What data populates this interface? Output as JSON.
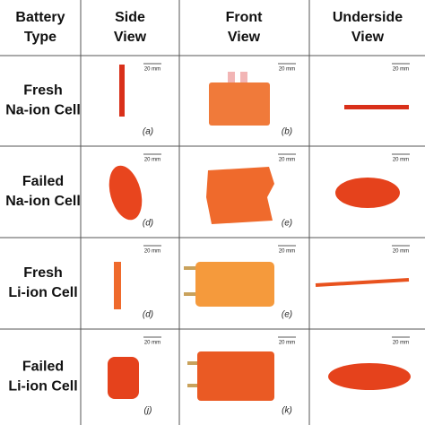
{
  "header": [
    [
      "Battery",
      "Type"
    ],
    [
      "Side",
      "View"
    ],
    [
      "Front",
      "View"
    ],
    [
      "Underside",
      "View"
    ]
  ],
  "rows": [
    {
      "type": [
        "Fresh",
        "Na-ion Cell"
      ],
      "cells": [
        {
          "scale": "20 mm",
          "label": "(a)"
        },
        {
          "scale": "20 mm",
          "label": "(b)"
        },
        {
          "scale": "20 mm"
        }
      ]
    },
    {
      "type": [
        "Failed",
        "Na-ion Cell"
      ],
      "cells": [
        {
          "scale": "20 mm",
          "label": "(d)"
        },
        {
          "scale": "20 mm",
          "label": "(e)"
        },
        {
          "scale": "20 mm"
        }
      ]
    },
    {
      "type": [
        "Fresh",
        "Li-ion Cell"
      ],
      "cells": [
        {
          "scale": "20 mm",
          "label": "(d)"
        },
        {
          "scale": "20 mm",
          "label": "(e)"
        },
        {
          "scale": "20 mm"
        }
      ]
    },
    {
      "type": [
        "Failed",
        "Li-ion Cell"
      ],
      "cells": [
        {
          "scale": "20 mm",
          "label": "(j)"
        },
        {
          "scale": "20 mm",
          "label": "(k)"
        },
        {
          "scale": "20 mm"
        }
      ]
    }
  ]
}
